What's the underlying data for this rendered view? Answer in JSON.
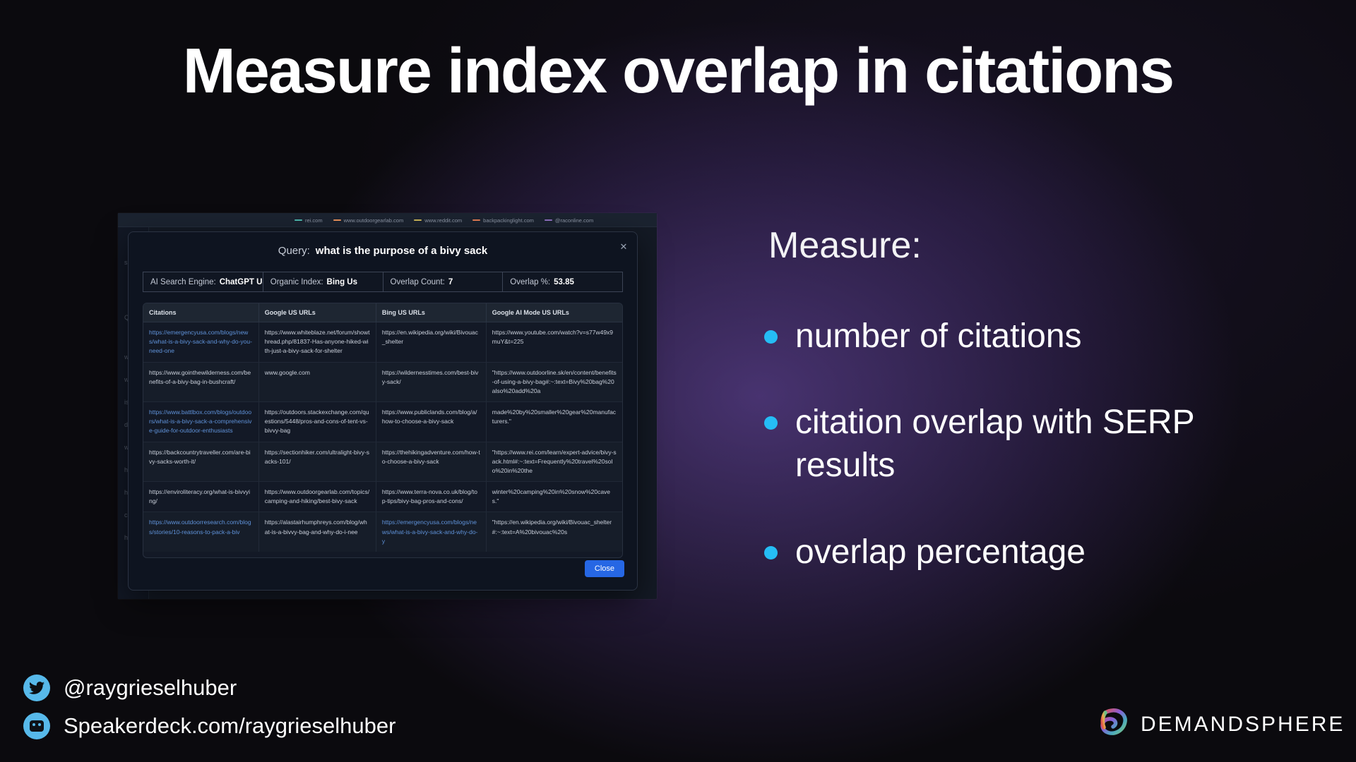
{
  "slide": {
    "title": "Measure index overlap in citations",
    "right_panel": {
      "heading": "Measure:",
      "bullets": [
        "number of citations",
        "citation overlap with SERP results",
        "overlap percentage"
      ],
      "bullet_color": "#25bdf5"
    },
    "footer": {
      "twitter_handle": "@raygrieselhuber",
      "speakerdeck_url": "Speakerdeck.com/raygrieselhuber",
      "icon_color": "#57b9ea"
    },
    "brand": {
      "logo_text": "DEMANDSPHERE"
    }
  },
  "screenshot": {
    "legend_items": [
      {
        "label": "rei.com",
        "color": "#4db6ac"
      },
      {
        "label": "www.outdoorgearlab.com",
        "color": "#e8915a"
      },
      {
        "label": "www.reddit.com",
        "color": "#c9b458"
      },
      {
        "label": "backpackinglight.com",
        "color": "#e07b54"
      },
      {
        "label": "@raconline.com",
        "color": "#8e6fc0"
      }
    ],
    "sidebar_fragments": [
      "sibi",
      "Que",
      "wha",
      "wha",
      "is a",
      "do e",
      "wha",
      "how",
      "how",
      "can",
      "how"
    ],
    "modal": {
      "query_label": "Query:",
      "query_text": "what is the purpose of a bivy sack",
      "close_icon": "✕",
      "close_button": "Close",
      "info": [
        {
          "label": "AI Search Engine:",
          "value": "ChatGPT US"
        },
        {
          "label": "Organic Index:",
          "value": "Bing Us"
        },
        {
          "label": "Overlap Count:",
          "value": "7"
        },
        {
          "label": "Overlap %:",
          "value": "53.85"
        }
      ],
      "table": {
        "headers": [
          "Citations",
          "Google US URLs",
          "Bing US URLs",
          "Google AI Mode US URLs"
        ],
        "rows": [
          {
            "cells": [
              {
                "t": "https://emergencyusa.com/blogs/news/what-is-a-bivy-sack-and-why-do-you-need-one",
                "link": true
              },
              {
                "t": "https://www.whiteblaze.net/forum/showthread.php/81837-Has-anyone-hiked-with-just-a-bivy-sack-for-shelter",
                "link": false
              },
              {
                "t": "https://en.wikipedia.org/wiki/Bivouac_shelter",
                "link": false
              },
              {
                "t": "https://www.youtube.com/watch?v=s77w49x9muY&t=225",
                "link": false
              }
            ]
          },
          {
            "cells": [
              {
                "t": "https://www.gointhewilderness.com/benefits-of-a-bivy-bag-in-bushcraft/",
                "link": false
              },
              {
                "t": "www.google.com",
                "link": false
              },
              {
                "t": "https://wildernesstimes.com/best-bivy-sack/",
                "link": false
              },
              {
                "t": "\"https://www.outdoorline.sk/en/content/benefits-of-using-a-bivy-bag#:~:text=Bivy%20bag%20also%20add%20a",
                "link": false
              }
            ]
          },
          {
            "cells": [
              {
                "t": "https://www.battlbox.com/blogs/outdoors/what-is-a-bivy-sack-a-comprehensive-guide-for-outdoor-enthusiasts",
                "link": true
              },
              {
                "t": "https://outdoors.stackexchange.com/questions/5448/pros-and-cons-of-tent-vs-bivvy-bag",
                "link": false
              },
              {
                "t": "https://www.publiclands.com/blog/a/how-to-choose-a-bivy-sack",
                "link": false
              },
              {
                "t": "made%20by%20smaller%20gear%20manufacturers.\"",
                "link": false
              }
            ]
          },
          {
            "cells": [
              {
                "t": "https://backcountrytraveller.com/are-bivy-sacks-worth-it/",
                "link": false
              },
              {
                "t": "https://sectionhiker.com/ultralight-bivy-sacks-101/",
                "link": false
              },
              {
                "t": "https://thehikingadventure.com/how-to-choose-a-bivy-sack",
                "link": false
              },
              {
                "t": "\"https://www.rei.com/learn/expert-advice/bivy-sack.html#:~:text=Frequently%20travel%20solo%20in%20the",
                "link": false
              }
            ]
          },
          {
            "cells": [
              {
                "t": "https://enviroliteracy.org/what-is-bivvying/",
                "link": false
              },
              {
                "t": "https://www.outdoorgearlab.com/topics/camping-and-hiking/best-bivy-sack",
                "link": false
              },
              {
                "t": "https://www.terra-nova.co.uk/blog/top-tips/bivy-bag-pros-and-cons/",
                "link": false
              },
              {
                "t": "winter%20camping%20in%20snow%20caves.\"",
                "link": false
              }
            ]
          },
          {
            "cells": [
              {
                "t": "https://www.outdoorresearch.com/blogs/stories/10-reasons-to-pack-a-biv",
                "link": true
              },
              {
                "t": "https://alastairhumphreys.com/blog/what-is-a-bivvy-bag-and-why-do-i-nee",
                "link": false
              },
              {
                "t": "https://emergencyusa.com/blogs/news/what-is-a-bivy-sack-and-why-do-y",
                "link": true
              },
              {
                "t": "\"https://en.wikipedia.org/wiki/Bivouac_shelter#:~:text=A%20bivouac%20s",
                "link": false
              }
            ]
          }
        ]
      }
    }
  }
}
